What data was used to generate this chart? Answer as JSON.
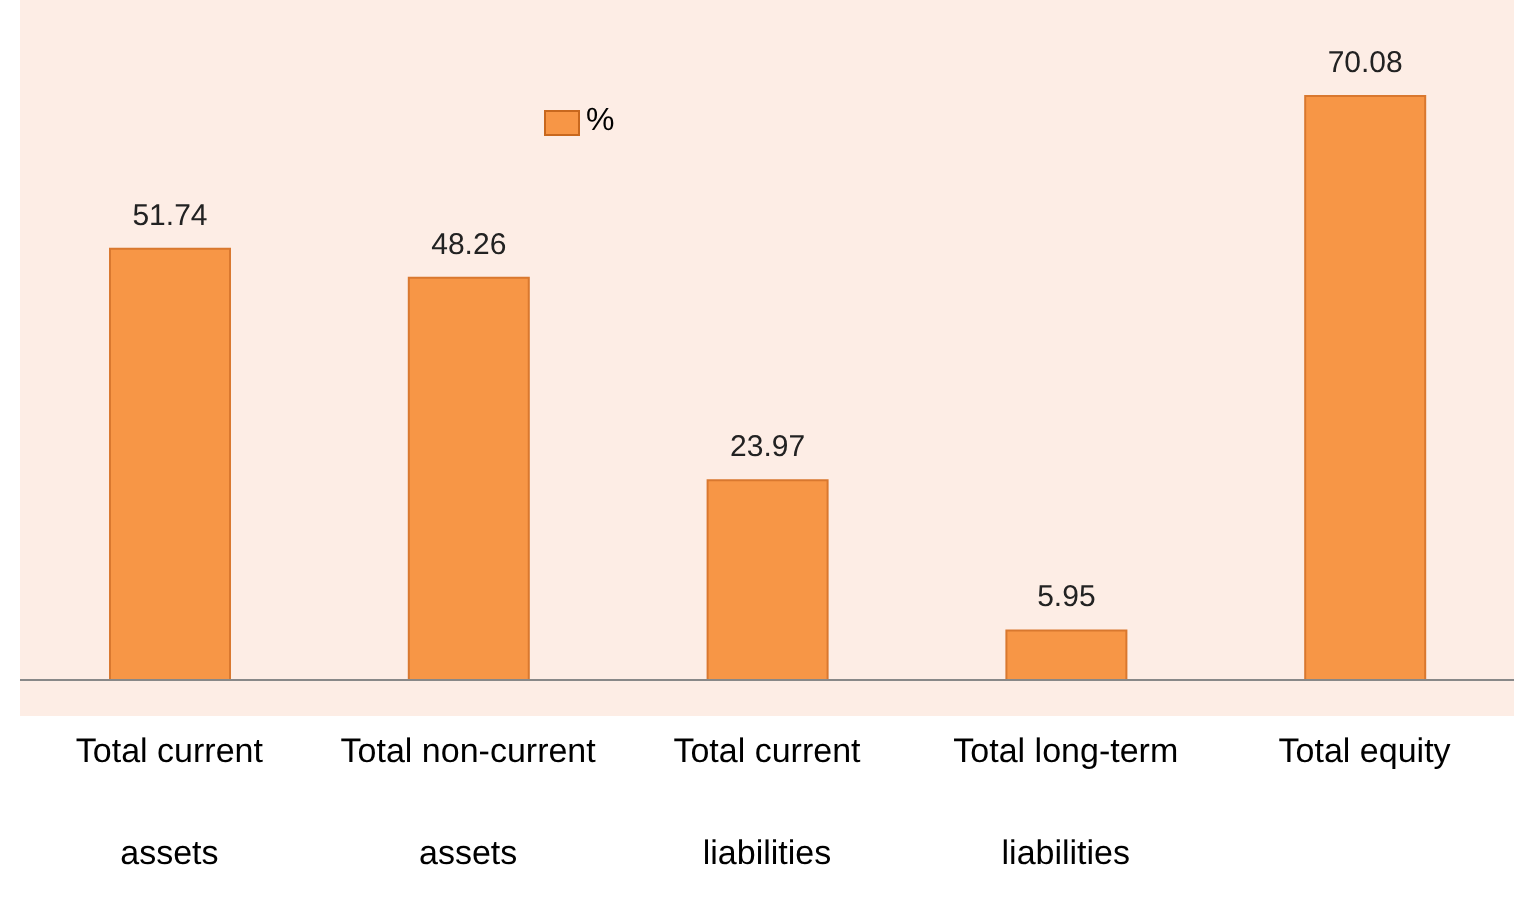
{
  "chart_data": {
    "type": "bar",
    "categories": [
      "Total current assets",
      "Total non-current assets",
      "Total current liabilities",
      "Total long-term liabilities",
      "Total equity"
    ],
    "series": [
      {
        "name": "%",
        "color": "#f79646",
        "values": [
          51.74,
          48.26,
          23.97,
          5.95,
          70.08
        ]
      }
    ],
    "data_labels": true,
    "legend": "top",
    "grid": false
  }
}
